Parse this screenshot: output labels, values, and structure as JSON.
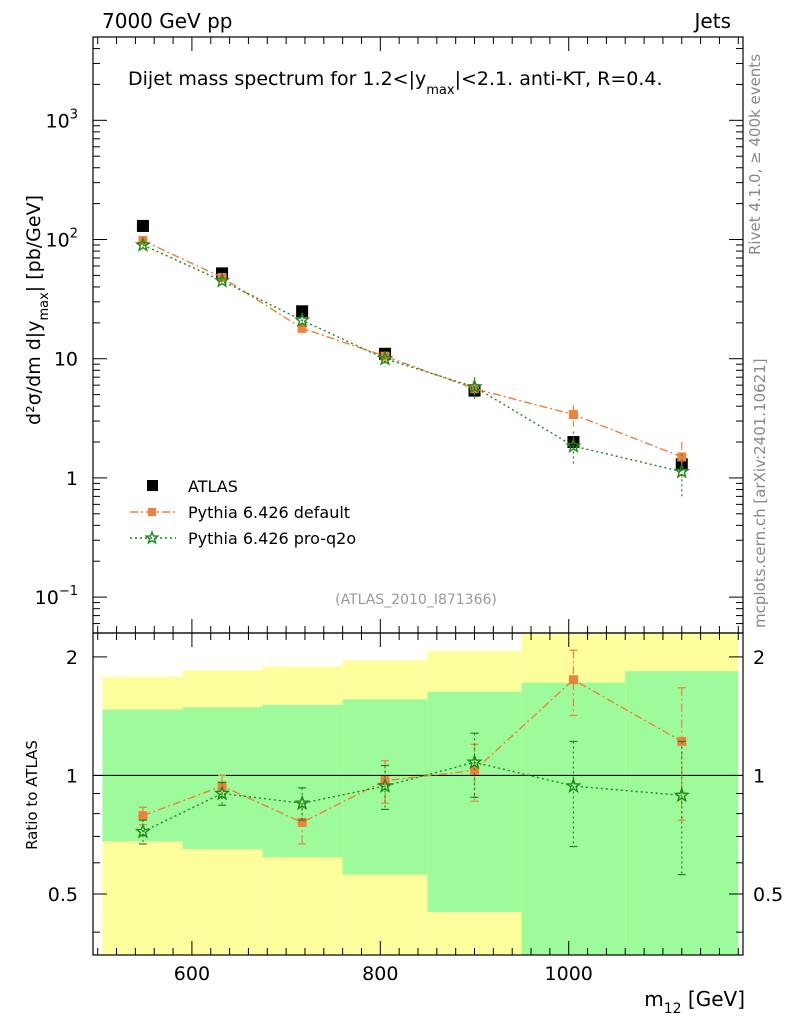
{
  "header": {
    "left": "7000 GeV pp",
    "right": "Jets"
  },
  "side_labels": {
    "top": "Rivet 4.1.0, ≥ 400k events",
    "bottom": "mcplots.cern.ch [arXiv:2401.10621]"
  },
  "chart_data": {
    "type": "scatter",
    "title": "Dijet mass spectrum for 1.2<|y_max|<2.1.  anti-KT, R=0.4.",
    "title_parts": {
      "a": "Dijet mass spectrum for 1.2<|y",
      "sub": "max",
      "b": "|<2.1.  anti-KT, R=0.4."
    },
    "analysis_tag": "(ATLAS_2010_I871366)",
    "ylabel": {
      "a": "d²σ/dm d|y",
      "sub": "max",
      "b": "| [pb/GeV]"
    },
    "xlabel": {
      "a": "m",
      "sub": "12",
      "b": " [GeV]"
    },
    "ratio_ylabel": "Ratio to ATLAS",
    "yscale": "log",
    "ylim": [
      0.05,
      5000
    ],
    "xlim": [
      495,
      1185
    ],
    "ratio_ylim": [
      0.35,
      2.3
    ],
    "x_ticks": [
      "600",
      "800",
      "1000"
    ],
    "y_ticks": [
      {
        "value": 1000,
        "base": "10",
        "exp": "3"
      },
      {
        "value": 100,
        "base": "10",
        "exp": "2"
      },
      {
        "value": 10,
        "base": "10",
        "exp": ""
      },
      {
        "value": 1,
        "base": "1",
        "exp": ""
      },
      {
        "value": 0.1,
        "base": "10",
        "exp": "−1"
      }
    ],
    "ratio_ticks": [
      "0.5",
      "1",
      "2"
    ],
    "legend": [
      {
        "label": "ATLAS",
        "marker": "square",
        "color": "#000000"
      },
      {
        "label": "Pythia 6.426 default",
        "marker": "filled-square",
        "color": "#f0803c"
      },
      {
        "label": "Pythia 6.426 pro-q2o",
        "marker": "star",
        "color": "#1a8a1a"
      }
    ],
    "bins": [
      {
        "lo": 505,
        "hi": 590,
        "x": 548,
        "atlas": 130,
        "ratio_band_inner": [
          0.68,
          1.47
        ],
        "ratio_band_outer": [
          0.34,
          1.78
        ]
      },
      {
        "lo": 590,
        "hi": 675,
        "x": 632,
        "atlas": 52,
        "ratio_band_inner": [
          0.65,
          1.49
        ],
        "ratio_band_outer": [
          0.34,
          1.85
        ]
      },
      {
        "lo": 675,
        "hi": 760,
        "x": 717,
        "atlas": 25,
        "ratio_band_inner": [
          0.62,
          1.51
        ],
        "ratio_band_outer": [
          0.34,
          1.89
        ]
      },
      {
        "lo": 760,
        "hi": 850,
        "x": 805,
        "atlas": 11,
        "ratio_band_inner": [
          0.56,
          1.56
        ],
        "ratio_band_outer": [
          0.34,
          1.96
        ]
      },
      {
        "lo": 850,
        "hi": 950,
        "x": 900,
        "atlas": 5.4,
        "ratio_band_inner": [
          0.45,
          1.63
        ],
        "ratio_band_outer": [
          0.34,
          2.07
        ]
      },
      {
        "lo": 950,
        "hi": 1060,
        "x": 1005,
        "atlas": 2.0,
        "ratio_band_inner": [
          0.34,
          1.72
        ],
        "ratio_band_outer": [
          0.34,
          2.29
        ]
      },
      {
        "lo": 1060,
        "hi": 1180,
        "x": 1120,
        "atlas": 1.3,
        "ratio_band_inner": [
          0.34,
          1.84
        ],
        "ratio_band_outer": [
          0.34,
          2.35
        ]
      }
    ],
    "series": [
      {
        "name": "Pythia 6.426 default",
        "color": "#f0803c",
        "marker": "square",
        "dash": "8,3,2,3",
        "x": [
          548,
          632,
          717,
          805,
          900,
          1005,
          1120
        ],
        "values": [
          98,
          48,
          18,
          10.5,
          5.6,
          3.4,
          1.5
        ],
        "errors": [
          5,
          3,
          2,
          1,
          0.8,
          0.7,
          0.5
        ],
        "ratio": [
          0.79,
          0.94,
          0.76,
          0.97,
          1.03,
          1.75,
          1.22
        ],
        "ratio_err": [
          0.04,
          0.06,
          0.09,
          0.12,
          0.17,
          0.33,
          0.45
        ]
      },
      {
        "name": "Pythia 6.426 pro-q2o",
        "color": "#1a8a1a",
        "marker": "star",
        "dash": "2,3",
        "x": [
          548,
          632,
          717,
          805,
          900,
          1005,
          1120
        ],
        "values": [
          90,
          45,
          21,
          10,
          5.8,
          1.85,
          1.13
        ],
        "errors": [
          6,
          3,
          2.5,
          1.5,
          1.2,
          0.6,
          0.45
        ],
        "ratio": [
          0.72,
          0.9,
          0.85,
          0.94,
          1.08,
          0.94,
          0.89
        ],
        "ratio_err": [
          0.05,
          0.06,
          0.08,
          0.12,
          0.2,
          0.28,
          0.33
        ]
      }
    ]
  }
}
